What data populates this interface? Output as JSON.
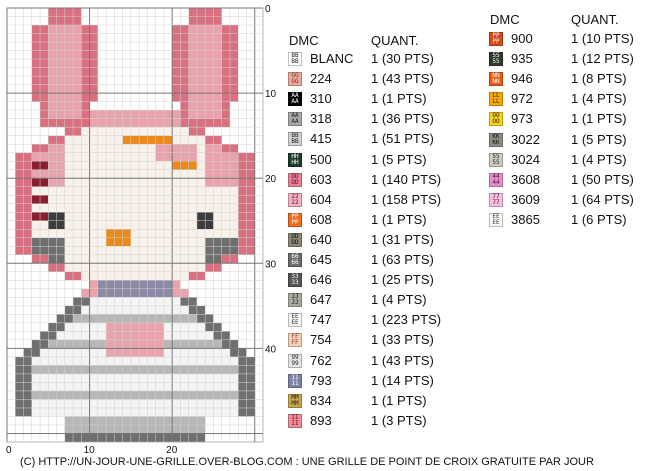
{
  "pattern": {
    "cols": 31,
    "rows": 51,
    "colors": {
      "blanc": "#f4f4f4",
      "pink": "#e8a3ad",
      "pink_dark": "#d9707f",
      "red_dark": "#8b1e2d",
      "face": "#f7f1ea",
      "gray": "#6f6f6f",
      "gray_dark": "#3c3c3c",
      "gray_light": "#b7b7b7",
      "orange": "#e98a1b",
      "lilac": "#8d8aa6"
    },
    "x_axis_labels": [
      "0",
      "10",
      "20"
    ],
    "y_axis_labels": [
      "0",
      "10",
      "20",
      "30",
      "40"
    ],
    "x_axis_values": [
      0,
      10,
      20
    ],
    "y_axis_values": [
      0,
      10,
      20,
      30,
      40
    ]
  },
  "legend": {
    "headers": {
      "dmc": "DMC",
      "quant": "QUANT."
    },
    "col1": [
      {
        "sym": "BB",
        "code": "BLANC",
        "qty": "1 (30 PTS)",
        "bg": "#ffffff",
        "fg": "#222222"
      },
      {
        "sym": "GG",
        "code": "224",
        "qty": "1 (43 PTS)",
        "bg": "#eba99c",
        "fg": "#7a2d24"
      },
      {
        "sym": "AA",
        "code": "310",
        "qty": "1 (1 PTS)",
        "bg": "#000000",
        "fg": "#ffffff"
      },
      {
        "sym": "AA",
        "code": "318",
        "qty": "1 (36 PTS)",
        "bg": "#a9a9a9",
        "fg": "#222222"
      },
      {
        "sym": "BB",
        "code": "415",
        "qty": "1 (51 PTS)",
        "bg": "#d2d2d2",
        "fg": "#222222"
      },
      {
        "sym": "HH",
        "code": "500",
        "qty": "1 (5 PTS)",
        "bg": "#1e3b2d",
        "fg": "#ffffff"
      },
      {
        "sym": "DD",
        "code": "603",
        "qty": "1 (140 PTS)",
        "bg": "#e8809b",
        "fg": "#5a1020"
      },
      {
        "sym": "22",
        "code": "604",
        "qty": "1 (158 PTS)",
        "bg": "#f2b0c0",
        "fg": "#5a1020"
      },
      {
        "sym": "PP",
        "code": "608",
        "qty": "1 (1 PTS)",
        "bg": "#f26b1f",
        "fg": "#ffffff"
      },
      {
        "sym": "DD",
        "code": "640",
        "qty": "1 (31 PTS)",
        "bg": "#8c8676",
        "fg": "#111111"
      },
      {
        "sym": "66",
        "code": "645",
        "qty": "1 (63 PTS)",
        "bg": "#6d6d6d",
        "fg": "#ffffff"
      },
      {
        "sym": "33",
        "code": "646",
        "qty": "1 (25 PTS)",
        "bg": "#555555",
        "fg": "#ffffff"
      },
      {
        "sym": "JJ",
        "code": "647",
        "qty": "1 (4 PTS)",
        "bg": "#a8a8a0",
        "fg": "#111111"
      },
      {
        "sym": "EE",
        "code": "747",
        "qty": "1 (223 PTS)",
        "bg": "#f5f5f5",
        "fg": "#333333"
      },
      {
        "sym": "FF",
        "code": "754",
        "qty": "1 (33 PTS)",
        "bg": "#f4cfb4",
        "fg": "#7a4a30"
      },
      {
        "sym": "99",
        "code": "762",
        "qty": "1 (43 PTS)",
        "bg": "#e4e4e4",
        "fg": "#222222"
      },
      {
        "sym": "11",
        "code": "793",
        "qty": "1 (14 PTS)",
        "bg": "#7f84a6",
        "fg": "#ffffff"
      },
      {
        "sym": "MM",
        "code": "834",
        "qty": "1 (1 PTS)",
        "bg": "#c8a84c",
        "fg": "#222222"
      },
      {
        "sym": "II",
        "code": "893",
        "qty": "1 (3 PTS)",
        "bg": "#f28a9a",
        "fg": "#5a1020"
      }
    ],
    "col2": [
      {
        "sym": "PP",
        "code": "900",
        "qty": "1 (10 PTS)",
        "bg": "#d2491a",
        "fg": "#ffffff"
      },
      {
        "sym": "55",
        "code": "935",
        "qty": "1 (12 PTS)",
        "bg": "#2f3a2a",
        "fg": "#ffffff"
      },
      {
        "sym": "NN",
        "code": "946",
        "qty": "1 (8 PTS)",
        "bg": "#ea5b18",
        "fg": "#ffffff"
      },
      {
        "sym": "LL",
        "code": "972",
        "qty": "1 (4 PTS)",
        "bg": "#f7a800",
        "fg": "#222222"
      },
      {
        "sym": "OO",
        "code": "973",
        "qty": "1 (1 PTS)",
        "bg": "#f8d21b",
        "fg": "#222222"
      },
      {
        "sym": "KK",
        "code": "3022",
        "qty": "1 (5 PTS)",
        "bg": "#8f8e82",
        "fg": "#111111"
      },
      {
        "sym": "55",
        "code": "3024",
        "qty": "1 (4 PTS)",
        "bg": "#cfcbc0",
        "fg": "#222222"
      },
      {
        "sym": "44",
        "code": "3608",
        "qty": "1 (50 PTS)",
        "bg": "#e790c8",
        "fg": "#4a1040"
      },
      {
        "sym": "77",
        "code": "3609",
        "qty": "1 (64 PTS)",
        "bg": "#f4bfe0",
        "fg": "#4a1040"
      },
      {
        "sym": "EE",
        "code": "3865",
        "qty": "1 (6 PTS)",
        "bg": "#fafaf5",
        "fg": "#333333"
      }
    ]
  },
  "footer": "(C) HTTP://UN-JOUR-UNE-GRILLE.OVER-BLOG.COM : UNE GRILLE DE POINT DE CROIX GRATUITE PAR JOUR"
}
